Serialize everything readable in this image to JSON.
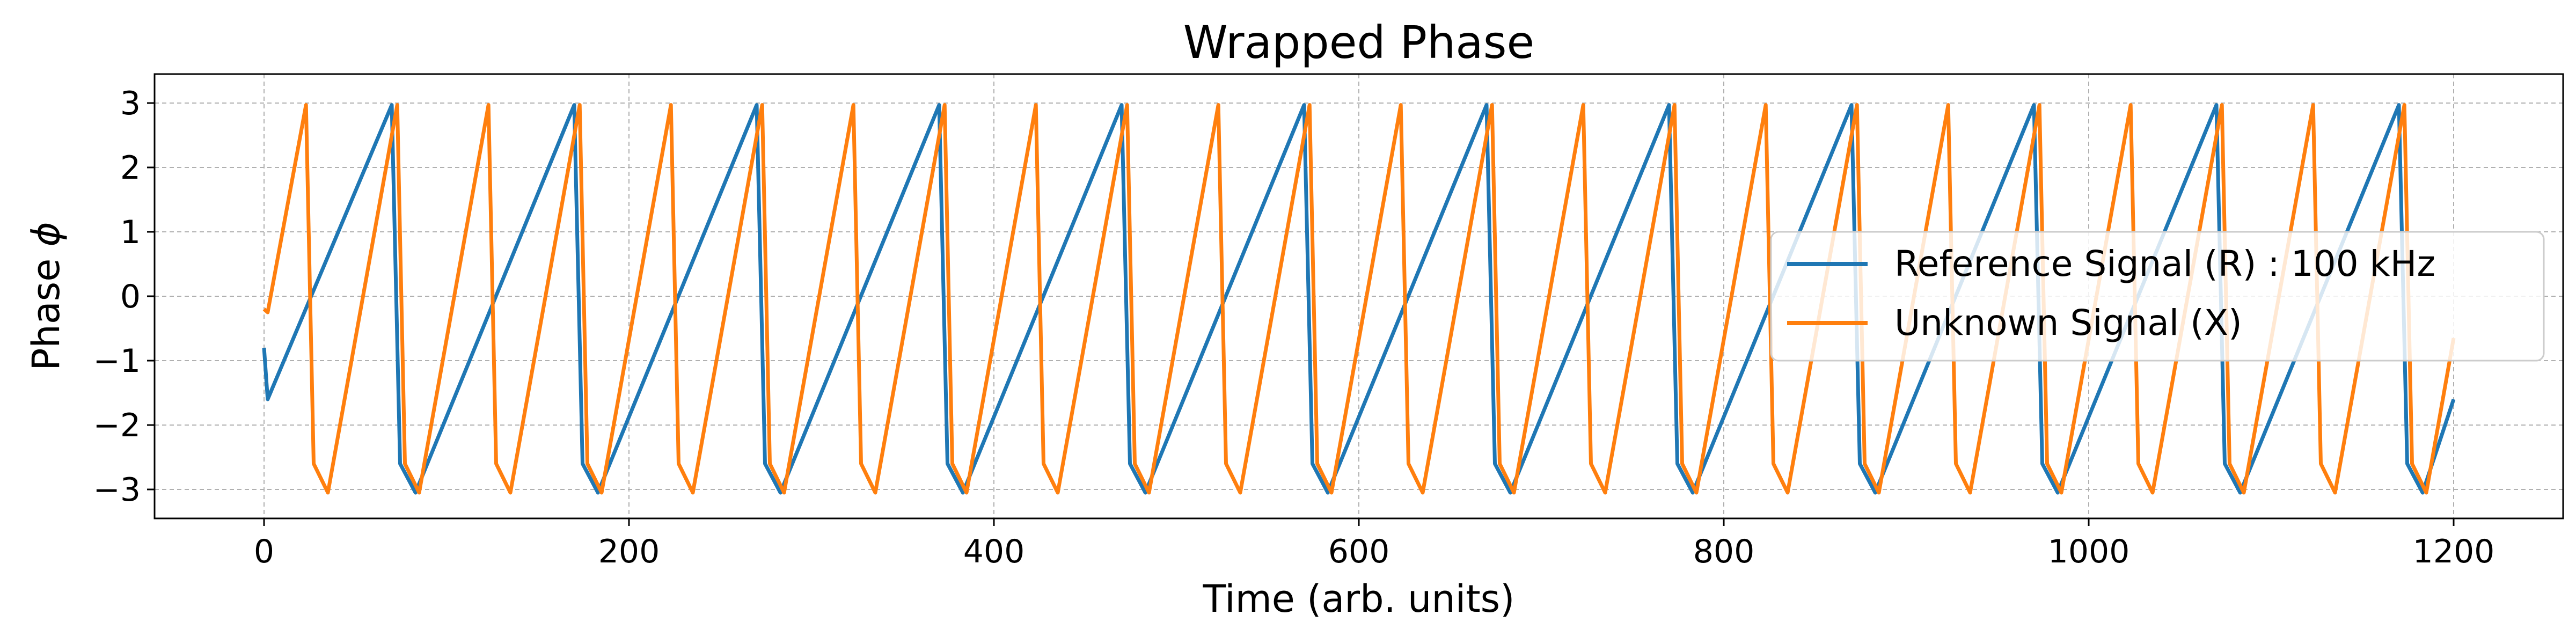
{
  "chart_data": {
    "type": "line",
    "title": "Wrapped Phase",
    "xlabel": "Time (arb. units)",
    "ylabel_text": "Phase ",
    "ylabel_symbol": "ϕ",
    "xlim": [
      -60,
      1260
    ],
    "ylim": [
      -3.45,
      3.45
    ],
    "xticks": [
      0,
      200,
      400,
      600,
      800,
      1000,
      1200
    ],
    "xtick_labels": [
      "0",
      "200",
      "400",
      "600",
      "800",
      "1000",
      "1200"
    ],
    "yticks": [
      -3,
      -2,
      -1,
      0,
      1,
      2,
      3
    ],
    "ytick_labels": [
      "−3",
      "−2",
      "−1",
      "0",
      "1",
      "2",
      "3"
    ],
    "grid": true,
    "legend_position": "center-right",
    "series": [
      {
        "name": "Reference Signal (R) : 100 kHz",
        "color": "#1f77b4",
        "x_start": 0,
        "x_end": 1200,
        "period": 100,
        "phase_offset": -0.8,
        "peak_x": [
          70,
          170,
          270,
          370,
          470,
          570,
          670,
          770,
          870,
          970,
          1070,
          1170
        ],
        "trough_x": [
          83,
          183,
          283,
          383,
          483,
          583,
          683,
          783,
          883,
          983,
          1083,
          1183
        ],
        "end_value": -1.6
      },
      {
        "name": "Unknown Signal (X)",
        "color": "#ff7f0e",
        "x_start": 0,
        "x_end": 1200,
        "period": 100,
        "phase_offset": -0.2,
        "peak_x": [
          23,
          73,
          123,
          173,
          223,
          273,
          323,
          373,
          423,
          473,
          523,
          573,
          623,
          673,
          723,
          773,
          823,
          873,
          923,
          973,
          1023,
          1073,
          1123,
          1173
        ],
        "trough_x": [
          35,
          85,
          135,
          185,
          235,
          285,
          335,
          385,
          435,
          485,
          535,
          585,
          635,
          685,
          735,
          785,
          835,
          885,
          935,
          985,
          1035,
          1085,
          1135,
          1185
        ],
        "end_value": -0.65
      }
    ]
  }
}
